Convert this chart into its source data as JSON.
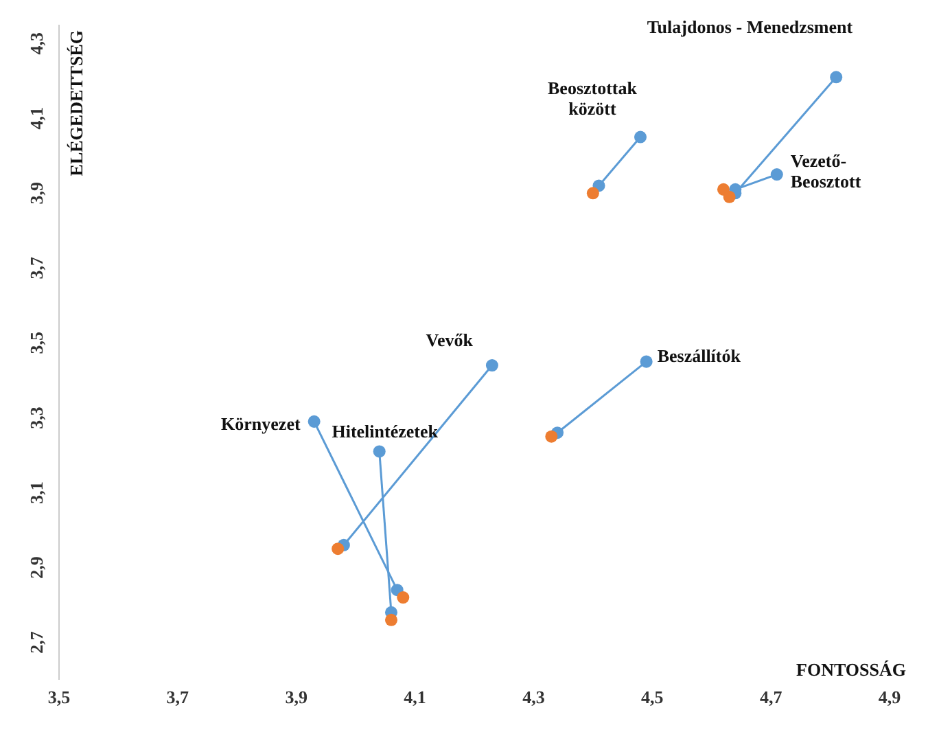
{
  "chart_data": {
    "type": "scatter",
    "xlabel": "FONTOSSÁG",
    "ylabel": "ELÉGEDETTSÉG",
    "xlim": [
      3.5,
      4.9
    ],
    "xticks": [
      {
        "value": 3.5,
        "label": "3,5"
      },
      {
        "value": 3.7,
        "label": "3,7"
      },
      {
        "value": 3.9,
        "label": "3,9"
      },
      {
        "value": 4.1,
        "label": "4,1"
      },
      {
        "value": 4.3,
        "label": "4,3"
      },
      {
        "value": 4.5,
        "label": "4,5"
      },
      {
        "value": 4.7,
        "label": "4,7"
      },
      {
        "value": 4.9,
        "label": "4,9"
      }
    ],
    "ylim": [
      2.6,
      4.35
    ],
    "yticks": [
      {
        "value": 2.7,
        "label": "2,7"
      },
      {
        "value": 2.9,
        "label": "2,9"
      },
      {
        "value": 3.1,
        "label": "3,1"
      },
      {
        "value": 3.3,
        "label": "3,3"
      },
      {
        "value": 3.5,
        "label": "3,5"
      },
      {
        "value": 3.7,
        "label": "3,7"
      },
      {
        "value": 3.9,
        "label": "3,9"
      },
      {
        "value": 4.1,
        "label": "4,1"
      },
      {
        "value": 4.3,
        "label": "4,3"
      }
    ],
    "grid": false,
    "marker": "circle",
    "series": [
      {
        "type": "line",
        "name": "Beosztottak\nközött",
        "color": "#5b9bd5",
        "x": [
          4.41,
          4.48
        ],
        "values": [
          3.92,
          4.05
        ]
      },
      {
        "type": "line",
        "name": "Tulajdonos - Menedzsment",
        "color": "#5b9bd5",
        "x": [
          4.64,
          4.81
        ],
        "values": [
          3.9,
          4.21
        ]
      },
      {
        "type": "line",
        "name": "Vezető-\nBeosztott",
        "color": "#5b9bd5",
        "x": [
          4.64,
          4.71
        ],
        "values": [
          3.91,
          3.95
        ]
      },
      {
        "type": "line",
        "name": "Beszállítók",
        "color": "#5b9bd5",
        "x": [
          4.34,
          4.49
        ],
        "values": [
          3.26,
          3.45
        ]
      },
      {
        "type": "line",
        "name": "Vevők",
        "color": "#5b9bd5",
        "x": [
          3.98,
          4.23
        ],
        "values": [
          2.96,
          3.44
        ]
      },
      {
        "type": "line",
        "name": "Környezet",
        "color": "#5b9bd5",
        "x": [
          4.07,
          3.93
        ],
        "values": [
          2.84,
          3.29
        ]
      },
      {
        "type": "line",
        "name": "Hitelintézetek",
        "color": "#5b9bd5",
        "x": [
          4.06,
          4.04
        ],
        "values": [
          2.78,
          3.21
        ]
      },
      {
        "color": "#ed7d31",
        "x": [
          4.4,
          4.62,
          4.63,
          4.33,
          3.97,
          4.08,
          4.06
        ],
        "values": [
          3.9,
          3.91,
          3.89,
          3.25,
          2.95,
          2.82,
          2.76
        ]
      }
    ]
  }
}
